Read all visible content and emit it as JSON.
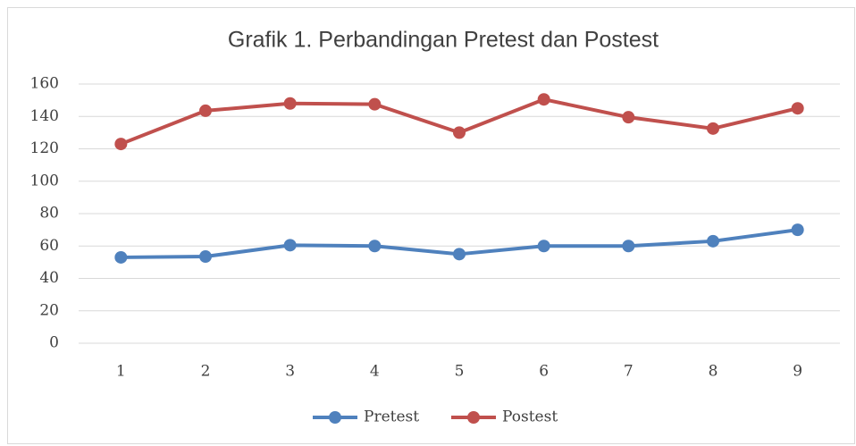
{
  "chart_data": {
    "type": "line",
    "title": "Grafik 1. Perbandingan Pretest dan Postest",
    "categories": [
      "1",
      "2",
      "3",
      "4",
      "5",
      "6",
      "7",
      "8",
      "9"
    ],
    "series": [
      {
        "name": "Pretest",
        "color": "#4f81bd",
        "values": [
          53,
          53.5,
          60.5,
          60,
          55,
          60,
          60,
          63,
          70
        ]
      },
      {
        "name": "Postest",
        "color": "#c0504d",
        "values": [
          123,
          143.5,
          148,
          147.5,
          130,
          150.5,
          139.5,
          132.5,
          145
        ]
      }
    ],
    "ylim": [
      0,
      160
    ],
    "yticks": [
      0,
      20,
      40,
      60,
      80,
      100,
      120,
      140,
      160
    ],
    "grid": true,
    "legend": "bottom"
  }
}
